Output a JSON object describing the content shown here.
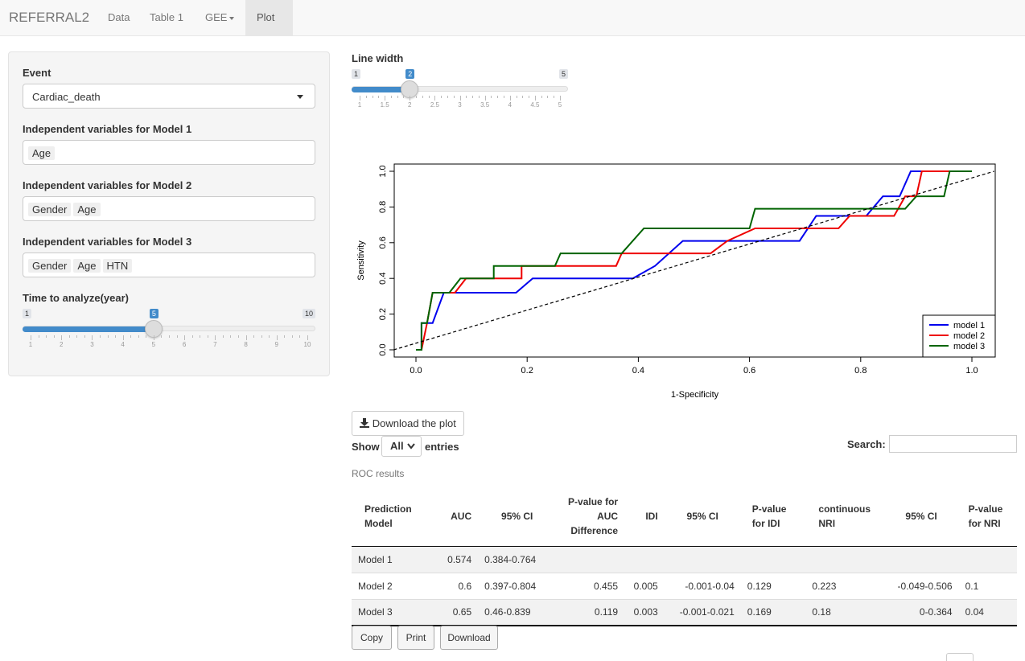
{
  "nav": {
    "brand": "REFERRAL2",
    "items": [
      "Data",
      "Table 1",
      "GEE",
      "Plot"
    ]
  },
  "sidebar": {
    "event_label": "Event",
    "event_value": "Cardiac_death",
    "model1_label": "Independent variables for Model 1",
    "model1_chips": [
      "Age"
    ],
    "model2_label": "Independent variables for Model 2",
    "model2_chips": [
      "Gender",
      "Age"
    ],
    "model3_label": "Independent variables for Model 3",
    "model3_chips": [
      "Gender",
      "Age",
      "HTN"
    ],
    "time_label": "Time to analyze(year)",
    "time_slider": {
      "min": "1",
      "max": "10",
      "value": "5",
      "ticks": [
        "1",
        "2",
        "3",
        "4",
        "5",
        "6",
        "7",
        "8",
        "9",
        "10"
      ]
    }
  },
  "linewidth": {
    "label": "Line width",
    "min": "1",
    "max": "5",
    "value": "2",
    "ticks": [
      "1",
      "1.5",
      "2",
      "2.5",
      "3",
      "3.5",
      "4",
      "4.5",
      "5"
    ]
  },
  "chart_data": {
    "type": "line",
    "title": "",
    "xlabel": "1-Specificity",
    "ylabel": "Sensitivity",
    "xlim": [
      0,
      1
    ],
    "ylim": [
      0,
      1
    ],
    "xticks": [
      "0.0",
      "0.2",
      "0.4",
      "0.6",
      "0.8",
      "1.0"
    ],
    "yticks": [
      "0.0",
      "0.2",
      "0.4",
      "0.6",
      "0.8",
      "1.0"
    ],
    "legend_position": "bottom-right",
    "series": [
      {
        "name": "model 1",
        "color": "#0000ee",
        "points": [
          [
            0,
            0
          ],
          [
            0.01,
            0
          ],
          [
            0.01,
            0.15
          ],
          [
            0.03,
            0.15
          ],
          [
            0.05,
            0.32
          ],
          [
            0.18,
            0.32
          ],
          [
            0.21,
            0.4
          ],
          [
            0.39,
            0.4
          ],
          [
            0.43,
            0.47
          ],
          [
            0.48,
            0.61
          ],
          [
            0.69,
            0.61
          ],
          [
            0.72,
            0.75
          ],
          [
            0.81,
            0.75
          ],
          [
            0.84,
            0.86
          ],
          [
            0.87,
            0.86
          ],
          [
            0.89,
            1.0
          ],
          [
            1.0,
            1.0
          ]
        ]
      },
      {
        "name": "model 2",
        "color": "#ee0000",
        "points": [
          [
            0,
            0
          ],
          [
            0.01,
            0
          ],
          [
            0.02,
            0.15
          ],
          [
            0.03,
            0.32
          ],
          [
            0.07,
            0.32
          ],
          [
            0.09,
            0.4
          ],
          [
            0.19,
            0.4
          ],
          [
            0.19,
            0.47
          ],
          [
            0.36,
            0.47
          ],
          [
            0.37,
            0.54
          ],
          [
            0.53,
            0.54
          ],
          [
            0.56,
            0.61
          ],
          [
            0.61,
            0.68
          ],
          [
            0.76,
            0.68
          ],
          [
            0.78,
            0.75
          ],
          [
            0.86,
            0.75
          ],
          [
            0.88,
            0.86
          ],
          [
            0.9,
            0.86
          ],
          [
            0.91,
            1.0
          ],
          [
            1.0,
            1.0
          ]
        ]
      },
      {
        "name": "model 3",
        "color": "#006400",
        "points": [
          [
            0,
            0
          ],
          [
            0.01,
            0
          ],
          [
            0.01,
            0.15
          ],
          [
            0.02,
            0.15
          ],
          [
            0.03,
            0.32
          ],
          [
            0.06,
            0.32
          ],
          [
            0.08,
            0.4
          ],
          [
            0.14,
            0.4
          ],
          [
            0.14,
            0.47
          ],
          [
            0.25,
            0.47
          ],
          [
            0.26,
            0.54
          ],
          [
            0.37,
            0.54
          ],
          [
            0.41,
            0.68
          ],
          [
            0.6,
            0.68
          ],
          [
            0.61,
            0.79
          ],
          [
            0.88,
            0.79
          ],
          [
            0.9,
            0.86
          ],
          [
            0.95,
            0.86
          ],
          [
            0.96,
            1.0
          ],
          [
            1.0,
            1.0
          ]
        ]
      },
      {
        "name": "reference",
        "color": "#000000",
        "dashed": true,
        "points": [
          [
            -0.04,
            0
          ],
          [
            1.04,
            1.0
          ]
        ]
      }
    ]
  },
  "download_plot": "Download the plot",
  "show": {
    "label": "Show",
    "value": "All",
    "suffix": "entries"
  },
  "search_label": "Search:",
  "roc_caption": "ROC results",
  "table": {
    "headers": [
      "Prediction Model",
      "AUC",
      "95% CI",
      "P-value for AUC Difference",
      "IDI",
      "95% CI",
      "P-value for IDI",
      "continuous NRI",
      "95% CI",
      "P-value for NRI"
    ],
    "rows": [
      [
        "Model 1",
        "0.574",
        "0.384-0.764",
        "",
        "",
        "",
        "",
        "",
        "",
        ""
      ],
      [
        "Model 2",
        "0.6",
        "0.397-0.804",
        "0.455",
        "0.005",
        "-0.001-0.04",
        "0.129",
        "0.223",
        "-0.049-0.506",
        "0.1"
      ],
      [
        "Model 3",
        "0.65",
        "0.46-0.839",
        "0.119",
        "0.003",
        "-0.001-0.021",
        "0.169",
        "0.18",
        "0-0.364",
        "0.04"
      ]
    ]
  },
  "buttons": {
    "copy": "Copy",
    "print": "Print",
    "download": "Download"
  }
}
